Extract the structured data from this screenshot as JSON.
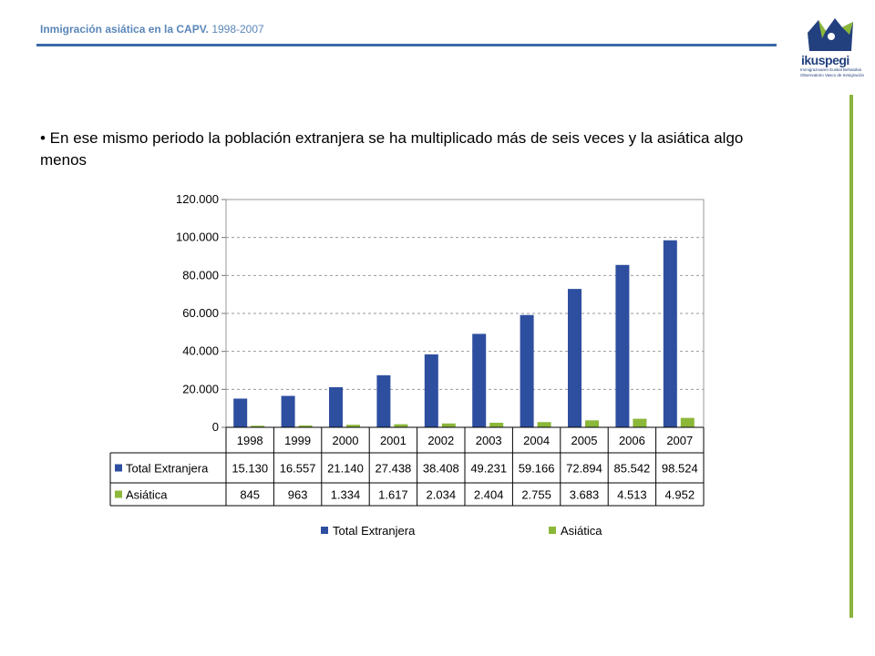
{
  "header": {
    "title_main": "Inmigración asiática  en la CAPV.",
    "title_years": "1998-2007"
  },
  "logo": {
    "word": "ikuspegi",
    "sub1": "Immigrazioaren Euskal Behatokia",
    "sub2": "Observatorio Vasco de Inmigración"
  },
  "text": {
    "bullet": "• En ese mismo periodo la población extranjera se ha multiplicado más de seis veces y la asiática algo menos"
  },
  "colors": {
    "accent_blue": "#3a6aa8",
    "series_total": "#2e4fa0",
    "series_asiatica": "#8cb83a",
    "side_bar": "#8cb33e"
  },
  "chart_data": {
    "type": "bar",
    "categories": [
      "1998",
      "1999",
      "2000",
      "2001",
      "2002",
      "2003",
      "2004",
      "2005",
      "2006",
      "2007"
    ],
    "series": [
      {
        "name": "Total Extranjera",
        "values": [
          15130,
          16557,
          21140,
          27438,
          38408,
          49231,
          59166,
          72894,
          85542,
          98524
        ],
        "labels": [
          "15.130",
          "16.557",
          "21.140",
          "27.438",
          "38.408",
          "49.231",
          "59.166",
          "72.894",
          "85.542",
          "98.524"
        ]
      },
      {
        "name": "Asiática",
        "values": [
          845,
          963,
          1334,
          1617,
          2034,
          2404,
          2755,
          3683,
          4513,
          4952
        ],
        "labels": [
          "845",
          "963",
          "1.334",
          "1.617",
          "2.034",
          "2.404",
          "2.755",
          "3.683",
          "4.513",
          "4.952"
        ]
      }
    ],
    "ylim": [
      0,
      120000
    ],
    "yticks": [
      0,
      20000,
      40000,
      60000,
      80000,
      100000,
      120000
    ],
    "ytick_labels": [
      "0",
      "20.000",
      "40.000",
      "60.000",
      "80.000",
      "100.000",
      "120.000"
    ],
    "grid": true,
    "legend": "bottom",
    "data_table": true
  }
}
